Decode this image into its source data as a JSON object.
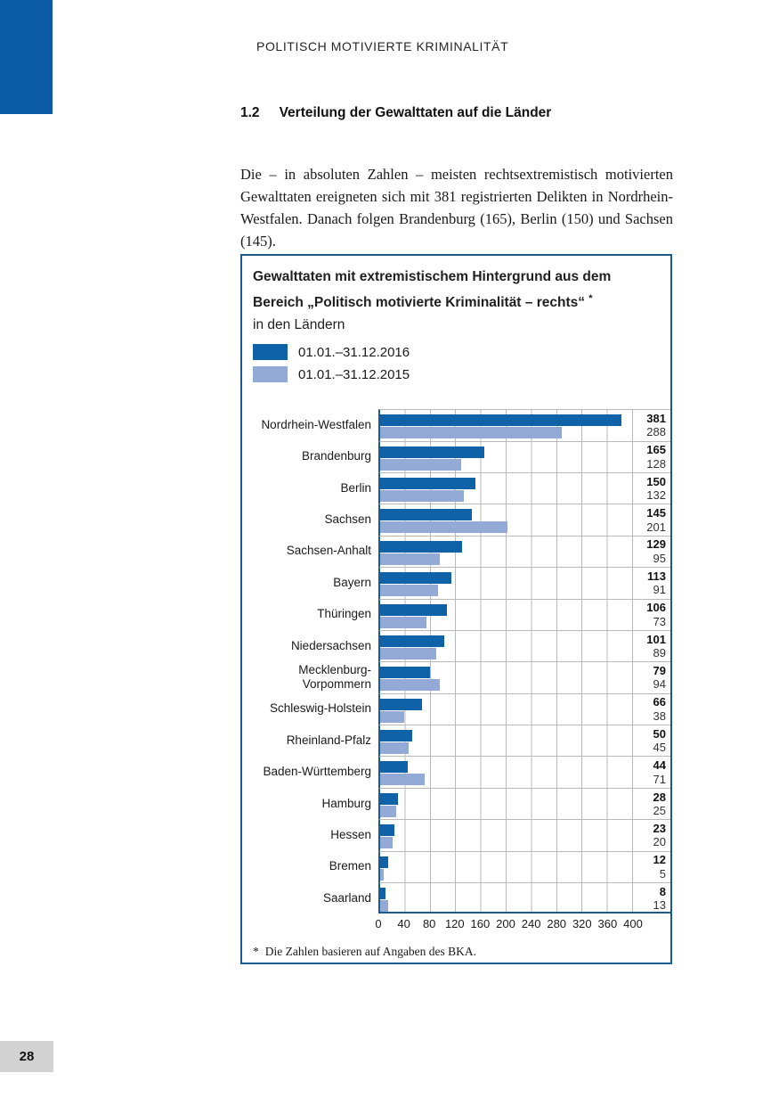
{
  "page": {
    "running_header": "POLITISCH MOTIVIERTE KRIMINALITÄT",
    "page_number": "28"
  },
  "section": {
    "number": "1.2",
    "title": "Verteilung der Gewalttaten auf die Länder"
  },
  "paragraph": "Die – in absoluten Zahlen – meisten rechtsextremistisch motivierten Gewalttaten ereigneten sich mit 381 registrierten Delikten in Nordrhein-Westfalen. Danach folgen Brandenburg (165), Berlin (150) und Sachsen (145).",
  "figure": {
    "title_line1": "Gewalttaten mit extremistischem Hintergrund aus dem",
    "title_line2": "Bereich „Politisch motivierte Kriminalität – rechts“",
    "title_asterisk": "*",
    "title_line3": "in den Ländern",
    "legend": [
      {
        "label": "01.01.–31.12.2016",
        "color": "#0f62a8"
      },
      {
        "label": "01.01.–31.12.2015",
        "color": "#94aad6"
      }
    ],
    "footnote_marker": "*",
    "footnote": "Die Zahlen basieren auf Angaben des BKA."
  },
  "colors": {
    "corner_block": "#0b5aa5",
    "box_border": "#1b5a8f",
    "grid_line": "#b9b9b9",
    "bar_2016": "#0f62a8",
    "bar_2015": "#94aad6",
    "page_number_bg": "#d2d2d2"
  },
  "chart_data": {
    "type": "bar",
    "orientation": "horizontal",
    "title": "Gewalttaten mit extremistischem Hintergrund aus dem Bereich „Politisch motivierte Kriminalität – rechts“ in den Ländern",
    "categories": [
      "Nordrhein-Westfalen",
      "Brandenburg",
      "Berlin",
      "Sachsen",
      "Sachsen-Anhalt",
      "Bayern",
      "Thüringen",
      "Niedersachsen",
      "Mecklenburg-Vorpommern",
      "Schleswig-Holstein",
      "Rheinland-Pfalz",
      "Baden-Württemberg",
      "Hamburg",
      "Hessen",
      "Bremen",
      "Saarland"
    ],
    "series": [
      {
        "name": "01.01.–31.12.2016",
        "color": "#0f62a8",
        "values": [
          381,
          165,
          150,
          145,
          129,
          113,
          106,
          101,
          79,
          66,
          50,
          44,
          28,
          23,
          12,
          8
        ]
      },
      {
        "name": "01.01.–31.12.2015",
        "color": "#94aad6",
        "values": [
          288,
          128,
          132,
          201,
          95,
          91,
          73,
          89,
          94,
          38,
          45,
          71,
          25,
          20,
          5,
          13
        ]
      }
    ],
    "xlim": [
      0,
      400
    ],
    "x_ticks": [
      0,
      40,
      80,
      120,
      160,
      200,
      240,
      280,
      320,
      360,
      400
    ],
    "grid": true,
    "value_labels": true,
    "legend_position": "top-left"
  }
}
